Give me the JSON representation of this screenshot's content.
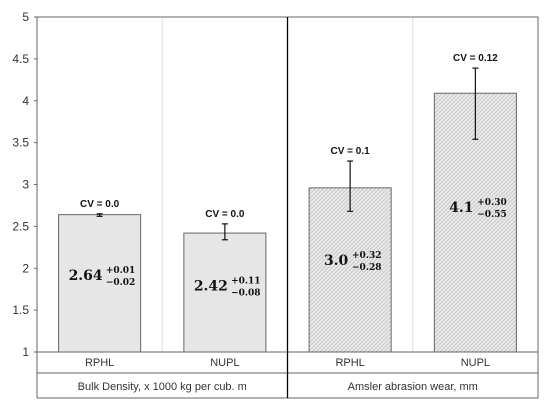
{
  "chart_data": {
    "type": "bar",
    "ylim": [
      1,
      5
    ],
    "yticks": [
      "1",
      "1.5",
      "2",
      "2.5",
      "3",
      "3.5",
      "4",
      "4.5",
      "5"
    ],
    "grid": false,
    "colors": {
      "solid_fill": "#e6e6e6",
      "hatch_fill": "#d9d9d9",
      "bar_stroke": "#666666",
      "axis": "#666666",
      "divider": "#000000"
    },
    "groups": [
      {
        "label": "Bulk Density, x 1000 kg per cub. m",
        "pattern": "solid",
        "bars": [
          {
            "category": "RPHL",
            "value": 2.64,
            "err_plus": 0.01,
            "err_minus": 0.02,
            "cv": "CV = 0.0",
            "value_text": "2.64",
            "plus_text": "+0.01",
            "minus_text": "−0.02"
          },
          {
            "category": "NUPL",
            "value": 2.42,
            "err_plus": 0.11,
            "err_minus": 0.08,
            "cv": "CV = 0.0",
            "value_text": "2.42",
            "plus_text": "+0.11",
            "minus_text": "−0.08"
          }
        ]
      },
      {
        "label": "Amsler abrasion wear, mm",
        "pattern": "hatched",
        "bars": [
          {
            "category": "RPHL",
            "value": 2.96,
            "err_plus": 0.32,
            "err_minus": 0.28,
            "cv": "CV = 0.1",
            "value_text": "3.0",
            "plus_text": "+0.32",
            "minus_text": "−0.28"
          },
          {
            "category": "NUPL",
            "value": 4.09,
            "err_plus": 0.3,
            "err_minus": 0.55,
            "cv": "CV = 0.12",
            "value_text": "4.1",
            "plus_text": "+0.30",
            "minus_text": "−0.55"
          }
        ]
      }
    ]
  }
}
